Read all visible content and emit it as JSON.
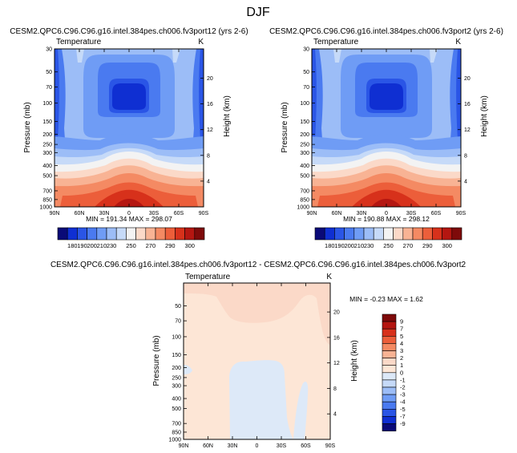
{
  "page_title": "DJF",
  "chart_data": [
    {
      "type": "contour",
      "title": "CESM2.QPC6.C96.C96.g16.intel.384pes.ch006.fv3port12 (yrs 2-6)",
      "left_label": "Temperature",
      "right_label": "K",
      "ylabel": "Pressure (mb)",
      "ylabel_right": "Height (km)",
      "x_ticks": [
        "90N",
        "60N",
        "30N",
        "0",
        "30S",
        "60S",
        "90S"
      ],
      "x_values": [
        90,
        60,
        30,
        0,
        -30,
        -60,
        -90
      ],
      "y_ticks": [
        "30",
        "50",
        "70",
        "100",
        "150",
        "200",
        "250",
        "300",
        "400",
        "500",
        "700",
        "850",
        "1000"
      ],
      "y_values": [
        30,
        50,
        70,
        100,
        150,
        200,
        250,
        300,
        400,
        500,
        700,
        850,
        1000
      ],
      "height_ticks": [
        "20",
        "16",
        "12",
        "8",
        "4"
      ],
      "height_values": [
        20,
        16,
        12,
        8,
        4
      ],
      "stats": "MIN = 191.34   MAX = 298.07",
      "min": 191.34,
      "max": 298.07
    },
    {
      "type": "contour",
      "title": "CESM2.QPC6.C96.C96.g16.intel.384pes.ch006.fv3port2 (yrs 2-6)",
      "left_label": "Temperature",
      "right_label": "K",
      "ylabel": "Pressure (mb)",
      "ylabel_right": "Height (km)",
      "x_ticks": [
        "90N",
        "60N",
        "30N",
        "0",
        "30S",
        "60S",
        "90S"
      ],
      "x_values": [
        90,
        60,
        30,
        0,
        -30,
        -60,
        -90
      ],
      "y_ticks": [
        "30",
        "50",
        "70",
        "100",
        "150",
        "200",
        "250",
        "300",
        "400",
        "500",
        "700",
        "850",
        "1000"
      ],
      "y_values": [
        30,
        50,
        70,
        100,
        150,
        200,
        250,
        300,
        400,
        500,
        700,
        850,
        1000
      ],
      "height_ticks": [
        "20",
        "16",
        "12",
        "8",
        "4"
      ],
      "height_values": [
        20,
        16,
        12,
        8,
        4
      ],
      "stats": "MIN = 190.88   MAX = 298.12",
      "min": 190.88,
      "max": 298.12
    },
    {
      "type": "contour",
      "title": "CESM2.QPC6.C96.C96.g16.intel.384pes.ch006.fv3port12 - CESM2.QPC6.C96.C96.g16.intel.384pes.ch006.fv3port2",
      "left_label": "Temperature",
      "right_label": "K",
      "ylabel": "Pressure (mb)",
      "ylabel_right": "Height (km)",
      "x_ticks": [
        "90N",
        "60N",
        "30N",
        "0",
        "30S",
        "60S",
        "90S"
      ],
      "x_values": [
        90,
        60,
        30,
        0,
        -30,
        -60,
        -90
      ],
      "y_ticks": [
        "50",
        "70",
        "100",
        "150",
        "200",
        "250",
        "300",
        "400",
        "500",
        "700",
        "850",
        "1000"
      ],
      "y_values": [
        50,
        70,
        100,
        150,
        200,
        250,
        300,
        400,
        500,
        700,
        850,
        1000
      ],
      "height_ticks": [
        "20",
        "16",
        "12",
        "8",
        "4"
      ],
      "height_values": [
        20,
        16,
        12,
        8,
        4
      ],
      "stats": "MIN = -0.23   MAX =  1.62",
      "min": -0.23,
      "max": 1.62
    }
  ],
  "colorbar_top": {
    "labels": [
      "180",
      "190",
      "200",
      "210",
      "230",
      "250",
      "270",
      "290",
      "300"
    ],
    "levels": [
      180,
      190,
      200,
      210,
      230,
      250,
      270,
      290,
      300
    ],
    "colors": [
      "#0a0a78",
      "#0f2fd2",
      "#2a55e6",
      "#4a7af0",
      "#6f9cf5",
      "#9cbdf7",
      "#c6daf8",
      "#f3f3f3",
      "#fbd9c8",
      "#f8b394",
      "#f48a63",
      "#ec5e3a",
      "#d7311b",
      "#b41611",
      "#7e0a0a"
    ]
  },
  "colorbar_diff": {
    "labels": [
      "9",
      "7",
      "5",
      "4",
      "3",
      "2",
      "1",
      "0",
      "-1",
      "-2",
      "-3",
      "-4",
      "-5",
      "-7",
      "-9"
    ],
    "levels": [
      9,
      7,
      5,
      4,
      3,
      2,
      1,
      0,
      -1,
      -2,
      -3,
      -4,
      -5,
      -7,
      -9
    ],
    "colors": [
      "#7e0a0a",
      "#b41611",
      "#d7311b",
      "#ec5e3a",
      "#f48a63",
      "#f8b394",
      "#fbd9c8",
      "#fde6d6",
      "#dde9f8",
      "#c6daf8",
      "#9cbdf7",
      "#6f9cf5",
      "#4a7af0",
      "#2a55e6",
      "#0f2fd2",
      "#0a0a78"
    ]
  }
}
